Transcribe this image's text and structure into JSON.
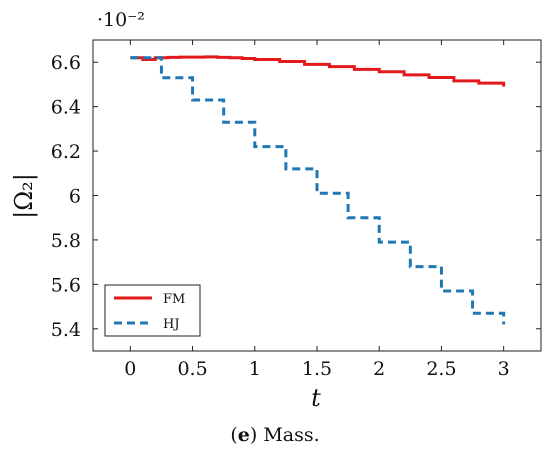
{
  "chart_data": {
    "type": "line",
    "title": "",
    "xlabel": "t",
    "ylabel": "|Ω₂|",
    "xlim": [
      -0.3,
      3.3
    ],
    "ylim": [
      5.3,
      6.7
    ],
    "scale_label": "·10⁻²",
    "xticks": [
      "0",
      "0.5",
      "1",
      "1.5",
      "2",
      "2.5",
      "3"
    ],
    "yticks": [
      "5.4",
      "5.6",
      "5.8",
      "6",
      "6.2",
      "6.4",
      "6.6"
    ],
    "legend_position": "bottom-left",
    "grid": false,
    "series": [
      {
        "name": "FM",
        "color": "#e31a1c",
        "style": "solid",
        "x": [
          0,
          0.1,
          0.2,
          0.3,
          0.4,
          0.5,
          0.6,
          0.7,
          0.8,
          0.9,
          1.0,
          1.2,
          1.4,
          1.6,
          1.8,
          2.0,
          2.2,
          2.4,
          2.6,
          2.8,
          3.0
        ],
        "values": [
          6.62,
          6.612,
          6.62,
          6.622,
          6.623,
          6.623,
          6.624,
          6.622,
          6.62,
          6.617,
          6.612,
          6.603,
          6.59,
          6.58,
          6.568,
          6.557,
          6.543,
          6.531,
          6.516,
          6.506,
          6.49
        ]
      },
      {
        "name": "HJ",
        "color": "#1f77b4",
        "style": "dashed",
        "x": [
          0,
          0.25,
          0.5,
          0.75,
          1.0,
          1.25,
          1.5,
          1.75,
          2.0,
          2.25,
          2.5,
          2.75,
          3.0
        ],
        "values": [
          6.62,
          6.53,
          6.43,
          6.33,
          6.22,
          6.12,
          6.01,
          5.9,
          5.79,
          5.68,
          5.57,
          5.47,
          5.42
        ]
      }
    ]
  },
  "caption": {
    "label": "e",
    "text": " Mass."
  }
}
